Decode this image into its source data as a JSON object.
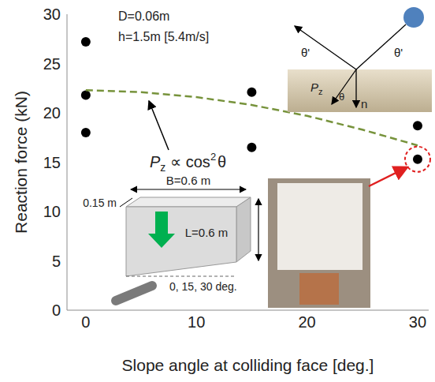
{
  "chart_data": {
    "type": "scatter",
    "xlabel": "Slope angle at colliding face [deg.]",
    "ylabel": "Reaction force (kN)",
    "xlim": [
      -1.7,
      31
    ],
    "xticks": [
      0,
      10,
      20,
      30
    ],
    "ylim": [
      0,
      30
    ],
    "yticks": [
      0,
      5,
      10,
      15,
      20,
      25,
      30
    ],
    "grid": false,
    "series": [
      {
        "type": "scatter",
        "color": "#000000",
        "marker": "circle",
        "x": [
          0,
          0,
          0,
          15,
          15,
          30,
          30
        ],
        "values": [
          27.2,
          21.8,
          18.0,
          22.1,
          16.5,
          18.7,
          15.3
        ]
      },
      {
        "type": "line",
        "color": "#77933c",
        "line_style": "dashed",
        "x": [
          0,
          5,
          10,
          15,
          20,
          25,
          30
        ],
        "values": [
          22.3,
          22.1,
          21.6,
          20.8,
          19.7,
          18.3,
          16.7
        ]
      }
    ],
    "annotations": {
      "conditions": [
        "D=0.06m",
        "h=1.5m [5.4m/s]"
      ],
      "formula": {
        "symbol": "P",
        "subscript": "z",
        "relation": " ∝ cos",
        "power": "2",
        "variable": "θ"
      },
      "specimen": {
        "width": "B=0.6 m",
        "depth": "0.15 m",
        "length": "L=0.6 m",
        "angles": "0, 15, 30 deg."
      },
      "impact_diagram": {
        "incident_angle": "θ'",
        "reflected_angle": "θ'",
        "slope_angle": "θ",
        "force": {
          "symbol": "P",
          "subscript": "z"
        },
        "normal": "n"
      },
      "highlight": {
        "x": 30,
        "value": 15.3
      }
    }
  }
}
